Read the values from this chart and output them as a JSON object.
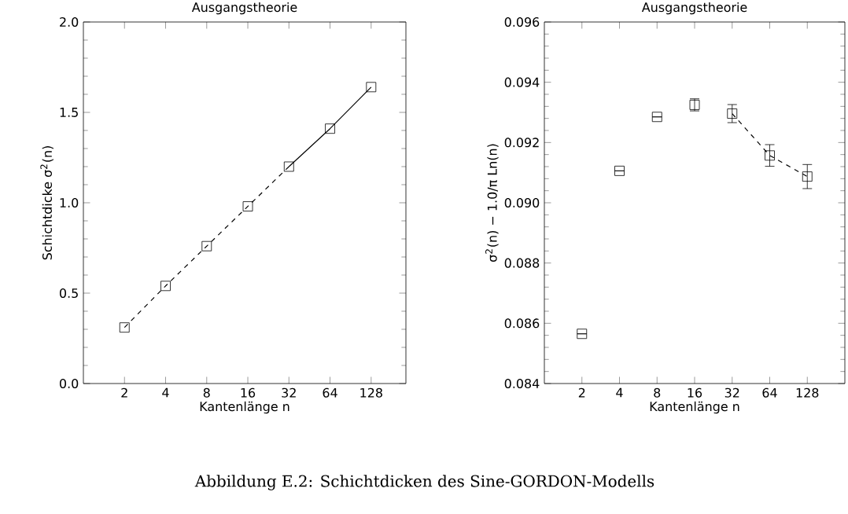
{
  "chart_data": [
    {
      "type": "scatter",
      "title": "Ausgangstheorie",
      "xlabel": "Kantenlänge n",
      "ylabel": "Schichtdicke σ$^{2}$(n)",
      "log": "x",
      "xlim": [
        1,
        230
      ],
      "ylim": [
        0,
        2.0
      ],
      "xticks": [
        2,
        4,
        8,
        16,
        32,
        64,
        128
      ],
      "yticks": [
        {
          "value": 0,
          "label": "0.0"
        },
        {
          "value": 0.5,
          "label": "0.5"
        },
        {
          "value": 1,
          "label": "1.0"
        },
        {
          "value": 1.5,
          "label": "1.5"
        },
        {
          "value": 2,
          "label": "2.0"
        }
      ],
      "series": [
        {
          "marker": "square",
          "color": "#000000",
          "x": [
            2,
            4,
            8,
            16,
            32,
            64,
            128
          ],
          "values": [
            0.31,
            0.54,
            0.76,
            0.98,
            1.2,
            1.41,
            1.64
          ]
        },
        {
          "type": "line",
          "line_style": "dashed",
          "color": "#000000",
          "x": [
            2,
            4,
            8,
            16,
            32
          ],
          "values": [
            0.31,
            0.54,
            0.76,
            0.98,
            1.2
          ]
        },
        {
          "type": "line",
          "line_style": "solid",
          "color": "#000000",
          "x": [
            32,
            64,
            128
          ],
          "values": [
            1.2,
            1.41,
            1.64
          ]
        }
      ],
      "annotations": [
        "Abbildung E.2: Schichtdicken des Sine-GORDON-Modells"
      ]
    },
    {
      "type": "scatter",
      "title": "Ausgangstheorie",
      "xlabel": "Kantenlänge n",
      "ylabel": "σ$^{2}$(n) − 1.0/π Ln(n)",
      "log": "x",
      "xlim": [
        1,
        256
      ],
      "ylim": [
        0.084,
        0.096
      ],
      "xticks": [
        2,
        4,
        8,
        16,
        32,
        64,
        128
      ],
      "yticks": [
        0.084,
        0.086,
        0.088,
        {
          "value": 0.09,
          "label": "0.090"
        },
        0.092,
        0.094,
        0.096
      ],
      "series": [
        {
          "marker": "square",
          "color": "#000000",
          "x": [
            2,
            4,
            8,
            16,
            32,
            64,
            128
          ],
          "values": [
            0.08565,
            0.09106,
            0.09285,
            0.09325,
            0.09296,
            0.09157,
            0.09087
          ],
          "errors": [
            null,
            null,
            null,
            0.0002,
            0.0003,
            0.00036,
            0.0004
          ]
        },
        {
          "type": "line",
          "line_style": "dashed",
          "color": "#000000",
          "x": [
            32,
            64,
            128
          ],
          "values": [
            0.09296,
            0.09157,
            0.09087
          ]
        }
      ]
    }
  ]
}
